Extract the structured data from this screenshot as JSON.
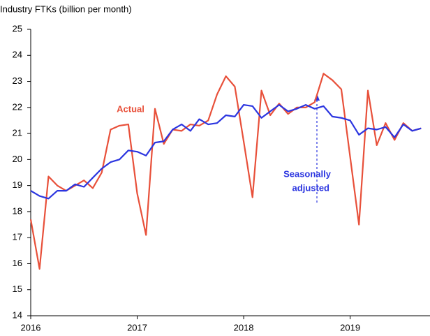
{
  "chart_data": {
    "type": "line",
    "title": "Industry FTKs (billion per month)",
    "x": [
      2016,
      2016.083,
      2016.167,
      2016.25,
      2016.333,
      2016.417,
      2016.5,
      2016.583,
      2016.667,
      2016.75,
      2016.833,
      2016.917,
      2017,
      2017.083,
      2017.167,
      2017.25,
      2017.333,
      2017.417,
      2017.5,
      2017.583,
      2017.667,
      2017.75,
      2017.833,
      2017.917,
      2018,
      2018.083,
      2018.167,
      2018.25,
      2018.333,
      2018.417,
      2018.5,
      2018.583,
      2018.667,
      2018.75,
      2018.833,
      2018.917,
      2019,
      2019.083,
      2019.167,
      2019.25,
      2019.333,
      2019.417,
      2019.5,
      2019.583,
      2019.667
    ],
    "series": [
      {
        "name": "Actual",
        "color": "#e8503a",
        "values": [
          17.7,
          15.8,
          19.35,
          19.0,
          18.8,
          19.0,
          19.2,
          18.9,
          19.5,
          21.15,
          21.3,
          21.35,
          18.7,
          17.1,
          21.95,
          20.6,
          21.15,
          21.1,
          21.35,
          21.3,
          21.5,
          22.5,
          23.2,
          22.8,
          20.7,
          18.55,
          22.65,
          21.7,
          22.15,
          21.75,
          22.0,
          22.0,
          22.2,
          23.3,
          23.05,
          22.7,
          20.1,
          17.5,
          22.65,
          20.55,
          21.4,
          20.75,
          21.4,
          21.1,
          21.2
        ]
      },
      {
        "name": [
          "Seasonally",
          "adjusted"
        ],
        "color": "#2b35e0",
        "values": [
          18.8,
          18.6,
          18.5,
          18.8,
          18.8,
          19.05,
          18.95,
          19.3,
          19.65,
          19.9,
          20.0,
          20.35,
          20.3,
          20.15,
          20.65,
          20.7,
          21.15,
          21.35,
          21.1,
          21.55,
          21.35,
          21.4,
          21.7,
          21.65,
          22.1,
          22.05,
          21.6,
          21.85,
          22.1,
          21.85,
          21.95,
          22.1,
          21.95,
          22.05,
          21.65,
          21.6,
          21.5,
          20.95,
          21.2,
          21.15,
          21.25,
          20.85,
          21.35,
          21.1,
          21.2
        ]
      }
    ],
    "xlim": [
      2016,
      2019.75
    ],
    "xticks": [
      2016,
      2017,
      2018,
      2019
    ],
    "ylim": [
      14,
      25
    ],
    "yticks": [
      14,
      15,
      16,
      17,
      18,
      19,
      20,
      21,
      22,
      23,
      24,
      25
    ],
    "grid": false
  }
}
